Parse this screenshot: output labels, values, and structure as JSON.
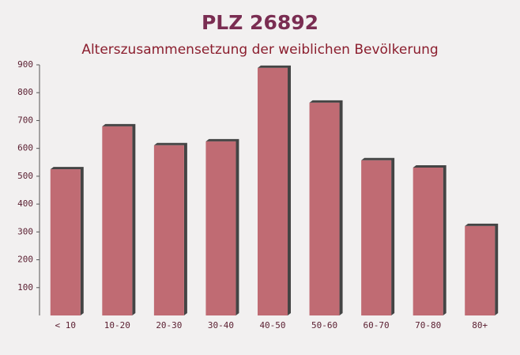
{
  "chart_data": {
    "type": "bar",
    "title": "PLZ 26892",
    "subtitle": "Alterszusammensetzung der weiblichen Bevölkerung",
    "categories": [
      "< 10",
      "10-20",
      "20-30",
      "30-40",
      "40-50",
      "50-60",
      "60-70",
      "70-80",
      "80+"
    ],
    "values": [
      525,
      679,
      611,
      625,
      889,
      764,
      557,
      531,
      321
    ],
    "color": "#c06b73",
    "ylim": [
      0,
      900
    ],
    "yticks": [
      100,
      200,
      300,
      400,
      500,
      600,
      700,
      800,
      900
    ]
  }
}
